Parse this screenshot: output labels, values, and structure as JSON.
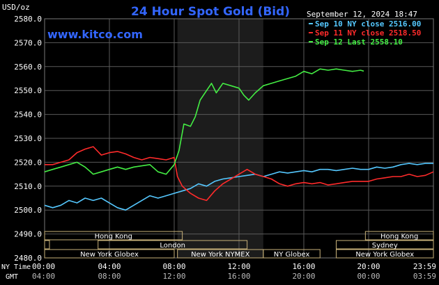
{
  "title": "24 Hour Spot Gold (Bid)",
  "watermark": "www.kitco.com",
  "unit_label": "USD/oz",
  "timestamp": "September 12, 2024 18:47",
  "legend": [
    {
      "label": "Sep 10 NY close 2516.00",
      "color": "#55c8ff"
    },
    {
      "label": "Sep 11 NY close 2518.50",
      "color": "#ff2b2b"
    },
    {
      "label": "Sep 12 Last 2558.10",
      "color": "#44ee44"
    }
  ],
  "time_rows": {
    "ny_label": "NY Time",
    "gmt_label": "GMT",
    "ny": [
      {
        "h": 0,
        "label": "00:00"
      },
      {
        "h": 4,
        "label": "04:00"
      },
      {
        "h": 8,
        "label": "08:00"
      },
      {
        "h": 12,
        "label": "12:00"
      },
      {
        "h": 16,
        "label": "16:00"
      },
      {
        "h": 20,
        "label": "20:00"
      },
      {
        "h": 24,
        "label": "23:59"
      }
    ],
    "gmt": [
      {
        "h": 0,
        "label": "04:00"
      },
      {
        "h": 4,
        "label": "08:00"
      },
      {
        "h": 8,
        "label": "12:00"
      },
      {
        "h": 12,
        "label": "16:00"
      },
      {
        "h": 16,
        "label": "20:00"
      },
      {
        "h": 20,
        "label": "00:00"
      },
      {
        "h": 24,
        "label": "03:59"
      }
    ]
  },
  "sessions": [
    {
      "label": "Hong Kong",
      "start": 0,
      "end": 8.5,
      "row": 0
    },
    {
      "label": "Hong Kong",
      "start": 19.8,
      "end": 24,
      "row": 0
    },
    {
      "label": "",
      "start": 0,
      "end": 0.3,
      "row": 1
    },
    {
      "label": "London",
      "start": 3.3,
      "end": 12.5,
      "row": 1
    },
    {
      "label": "Sydney",
      "start": 18.0,
      "end": 24,
      "row": 1
    },
    {
      "label": "New York Globex",
      "start": 0,
      "end": 8.0,
      "row": 2
    },
    {
      "label": "New York NYMEX",
      "start": 8.2,
      "end": 13.5,
      "row": 2
    },
    {
      "label": "NY Globex",
      "start": 13.5,
      "end": 17.0,
      "row": 2
    },
    {
      "label": "New York Globex",
      "start": 18.0,
      "end": 24,
      "row": 2
    }
  ],
  "chart_data": {
    "type": "line",
    "title": "24 Hour Spot Gold (Bid)",
    "ylabel": "USD/oz",
    "xlabel": "NY Time",
    "x_unit": "hours",
    "xlim": [
      0,
      24
    ],
    "ylim": [
      2480,
      2580
    ],
    "yticks": [
      2480,
      2490,
      2500,
      2510,
      2520,
      2530,
      2540,
      2550,
      2560,
      2570,
      2580
    ],
    "ytick_labels": [
      "2480.0",
      "2490.0",
      "2500.0",
      "2510.0",
      "2520.0",
      "2530.0",
      "2540.0",
      "2550.0",
      "2560.0",
      "2570.0",
      "2580.0"
    ],
    "grid": true,
    "shaded_region": [
      8.2,
      13.5
    ],
    "legend_position": "top-right",
    "series": [
      {
        "name": "Sep 10 NY close 2516.00",
        "color": "#55c8ff",
        "x": [
          0,
          0.5,
          1,
          1.5,
          2,
          2.5,
          3,
          3.5,
          4,
          4.5,
          5,
          5.5,
          6,
          6.5,
          7,
          7.5,
          8,
          8.5,
          9,
          9.5,
          10,
          10.5,
          11,
          11.5,
          12,
          12.5,
          13,
          13.5,
          14,
          14.5,
          15,
          15.5,
          16,
          16.5,
          17,
          17.5,
          18,
          18.5,
          19,
          19.5,
          20,
          20.5,
          21,
          21.5,
          22,
          22.5,
          23,
          23.5,
          24
        ],
        "y": [
          2502,
          2501,
          2502,
          2504,
          2503,
          2505,
          2504,
          2505,
          2503,
          2501,
          2500,
          2502,
          2504,
          2506,
          2505,
          2506,
          2507,
          2508,
          2509,
          2511,
          2510,
          2512,
          2513,
          2513.5,
          2514,
          2514.5,
          2515,
          2514,
          2515,
          2516,
          2515.5,
          2516,
          2516.5,
          2516,
          2517,
          2517,
          2516.5,
          2517,
          2517.5,
          2517,
          2517,
          2518,
          2517.5,
          2518,
          2519,
          2519.5,
          2519,
          2519.5,
          2519.5
        ]
      },
      {
        "name": "Sep 11 NY close 2518.50",
        "color": "#ff2b2b",
        "x": [
          0,
          0.5,
          1,
          1.5,
          2,
          2.5,
          3,
          3.5,
          4,
          4.5,
          5,
          5.5,
          6,
          6.5,
          7,
          7.5,
          8,
          8.2,
          8.5,
          9,
          9.5,
          10,
          10.5,
          11,
          11.5,
          12,
          12.5,
          13,
          13.5,
          14,
          14.5,
          15,
          15.5,
          16,
          16.5,
          17,
          17.5,
          18,
          18.5,
          19,
          19.5,
          20,
          20.5,
          21,
          21.5,
          22,
          22.5,
          23,
          23.5,
          24
        ],
        "y": [
          2519,
          2519,
          2520,
          2521,
          2524,
          2525.5,
          2526.5,
          2523,
          2524,
          2524.5,
          2523.5,
          2522,
          2521,
          2522,
          2521.5,
          2521,
          2522,
          2514,
          2510,
          2507,
          2505,
          2504,
          2508,
          2511,
          2513,
          2515,
          2517,
          2515,
          2514,
          2513,
          2511,
          2510,
          2511,
          2511.5,
          2511,
          2511.5,
          2510.5,
          2511,
          2511.5,
          2512,
          2512,
          2512,
          2513,
          2513.5,
          2514,
          2514,
          2515,
          2514,
          2514.5,
          2516
        ]
      },
      {
        "name": "Sep 12 Last 2558.10",
        "color": "#44ee44",
        "x": [
          0,
          0.5,
          1,
          1.5,
          2,
          2.5,
          3,
          3.5,
          4,
          4.5,
          5,
          5.5,
          6,
          6.5,
          7,
          7.5,
          8,
          8.3,
          8.6,
          9,
          9.3,
          9.6,
          10,
          10.3,
          10.6,
          11,
          11.5,
          12,
          12.3,
          12.6,
          13,
          13.5,
          14,
          14.5,
          15,
          15.5,
          16,
          16.5,
          17,
          17.5,
          18,
          18.5,
          19,
          19.5,
          19.7
        ],
        "y": [
          2516,
          2517,
          2518,
          2519,
          2520,
          2518,
          2515,
          2516,
          2517,
          2518,
          2517,
          2518,
          2518.5,
          2519,
          2516,
          2515,
          2519,
          2525,
          2536,
          2535,
          2539,
          2546,
          2550,
          2553,
          2549,
          2553,
          2552,
          2551,
          2548,
          2546,
          2549,
          2552,
          2553,
          2554,
          2555,
          2556,
          2558,
          2557,
          2559,
          2558.5,
          2559,
          2558.5,
          2558,
          2558.5,
          2558.1
        ]
      }
    ]
  }
}
